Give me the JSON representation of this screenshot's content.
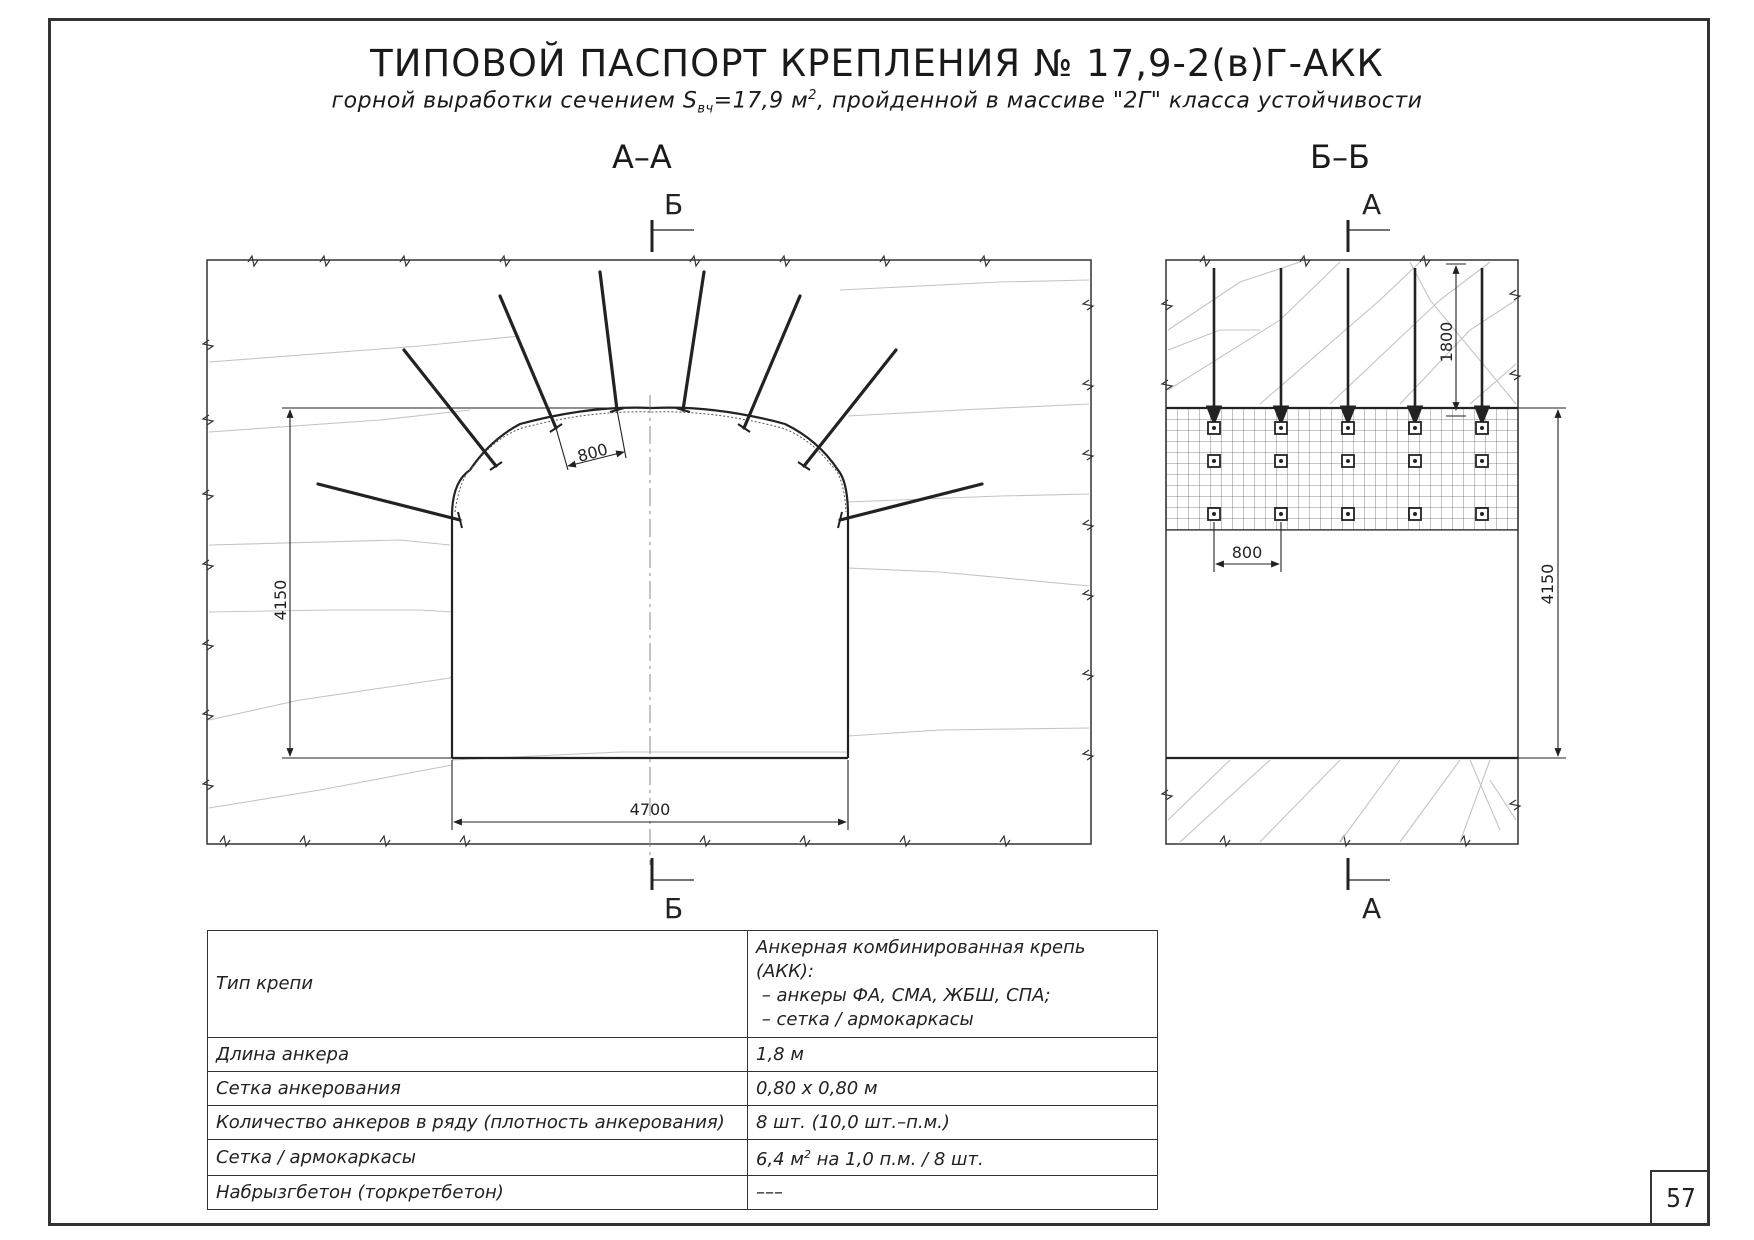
{
  "header": {
    "title": "ТИПОВОЙ ПАСПОРТ КРЕПЛЕНИЯ № 17,9-2(в)Г-АКК",
    "subtitle_part1": "горной выработки сечением S",
    "subtitle_sub": "вч",
    "subtitle_part2": "=17,9 м",
    "subtitle_sup": "2",
    "subtitle_part3": ", пройденной в массиве \"2Г\" класса устойчивости"
  },
  "section_aa": {
    "label": "А–А",
    "cut_top": "Б",
    "cut_bottom": "Б",
    "dim_height": "4150",
    "dim_width": "4700",
    "dim_spacing": "800"
  },
  "section_bb": {
    "label": "Б–Б",
    "cut_top": "А",
    "cut_bottom": "А",
    "dim_anchor_length": "1800",
    "dim_height": "4150",
    "dim_spacing": "800"
  },
  "table": {
    "rows": [
      {
        "param": "Тип крепи",
        "value_lines": [
          "Анкерная комбинированная крепь (АКК):",
          " – анкеры ФА, СМА, ЖБШ, СПА;",
          " – сетка / армокаркасы"
        ]
      },
      {
        "param": "Длина анкера",
        "value": "1,8 м"
      },
      {
        "param": "Сетка анкерования",
        "value": "0,80 х 0,80 м"
      },
      {
        "param": "Количество анкеров в ряду (плотность анкерования)",
        "value": "8 шт. (10,0 шт.–п.м.)"
      },
      {
        "param": "Сетка / армокаркасы",
        "value_part1": "6,4 м",
        "value_sup": "2",
        "value_part2": " на 1,0 п.м. / 8 шт."
      },
      {
        "param": "Набрызгбетон (торкретбетон)",
        "value": "–––"
      }
    ]
  },
  "page_number": "57",
  "colors": {
    "line": "#222222",
    "thin": "#bbbbbb",
    "frame": "#333333"
  }
}
